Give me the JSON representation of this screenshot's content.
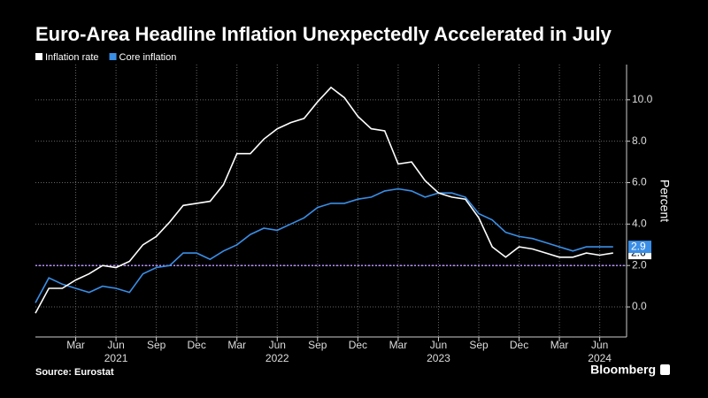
{
  "chart_data": {
    "type": "line",
    "title": "Euro-Area Headline Inflation Unexpectedly Accelerated in July",
    "y_label": "Percent",
    "source": "Source: Eurostat",
    "brand": "Bloomberg",
    "x": [
      "2020-12",
      "2021-01",
      "2021-02",
      "2021-03",
      "2021-04",
      "2021-05",
      "2021-06",
      "2021-07",
      "2021-08",
      "2021-09",
      "2021-10",
      "2021-11",
      "2021-12",
      "2022-01",
      "2022-02",
      "2022-03",
      "2022-04",
      "2022-05",
      "2022-06",
      "2022-07",
      "2022-08",
      "2022-09",
      "2022-10",
      "2022-11",
      "2022-12",
      "2023-01",
      "2023-02",
      "2023-03",
      "2023-04",
      "2023-05",
      "2023-06",
      "2023-07",
      "2023-08",
      "2023-09",
      "2023-10",
      "2023-11",
      "2023-12",
      "2024-01",
      "2024-02",
      "2024-03",
      "2024-04",
      "2024-05",
      "2024-06",
      "2024-07"
    ],
    "xlim": [
      "2020-12",
      "2024-08"
    ],
    "xticks": [
      {
        "value": "2021-03",
        "label": "Mar"
      },
      {
        "value": "2021-06",
        "label": "Jun"
      },
      {
        "value": "2021-09",
        "label": "Sep"
      },
      {
        "value": "2021-12",
        "label": "Dec"
      },
      {
        "value": "2022-03",
        "label": "Mar"
      },
      {
        "value": "2022-06",
        "label": "Jun"
      },
      {
        "value": "2022-09",
        "label": "Sep"
      },
      {
        "value": "2022-12",
        "label": "Dec"
      },
      {
        "value": "2023-03",
        "label": "Mar"
      },
      {
        "value": "2023-06",
        "label": "Jun"
      },
      {
        "value": "2023-09",
        "label": "Sep"
      },
      {
        "value": "2023-12",
        "label": "Dec"
      },
      {
        "value": "2024-03",
        "label": "Mar"
      },
      {
        "value": "2024-06",
        "label": "Jun"
      }
    ],
    "xtick_years": [
      "2021",
      "2022",
      "2023",
      "2024"
    ],
    "ylim": [
      -1.45,
      11.7
    ],
    "yticks": [
      {
        "value": 0,
        "label": "0.0"
      },
      {
        "value": 2,
        "label": "2.0"
      },
      {
        "value": 4,
        "label": "4.0"
      },
      {
        "value": 6,
        "label": "6.0"
      },
      {
        "value": 8,
        "label": "8.0"
      },
      {
        "value": 10,
        "label": "10.0"
      }
    ],
    "grid": true,
    "hline": {
      "value": 2,
      "color": "#b48cff"
    },
    "series": [
      {
        "name": "Inflation rate",
        "color": "#ffffff",
        "last_value_label": "2.6",
        "values": [
          -0.3,
          0.9,
          0.9,
          1.3,
          1.6,
          2.0,
          1.9,
          2.2,
          3.0,
          3.4,
          4.1,
          4.9,
          5.0,
          5.1,
          5.9,
          7.4,
          7.4,
          8.1,
          8.6,
          8.9,
          9.1,
          9.9,
          10.6,
          10.1,
          9.2,
          8.6,
          8.5,
          6.9,
          7.0,
          6.1,
          5.5,
          5.3,
          5.2,
          4.3,
          2.9,
          2.4,
          2.9,
          2.8,
          2.6,
          2.4,
          2.4,
          2.6,
          2.5,
          2.6
        ]
      },
      {
        "name": "Core inflation",
        "color": "#3a8ee6",
        "last_value_label": "2.9",
        "values": [
          0.2,
          1.4,
          1.1,
          0.9,
          0.7,
          1.0,
          0.9,
          0.7,
          1.6,
          1.9,
          2.0,
          2.6,
          2.6,
          2.3,
          2.7,
          3.0,
          3.5,
          3.8,
          3.7,
          4.0,
          4.3,
          4.8,
          5.0,
          5.0,
          5.2,
          5.3,
          5.6,
          5.7,
          5.6,
          5.3,
          5.5,
          5.5,
          5.3,
          4.5,
          4.2,
          3.6,
          3.4,
          3.3,
          3.1,
          2.9,
          2.7,
          2.9,
          2.9,
          2.9
        ]
      }
    ]
  }
}
